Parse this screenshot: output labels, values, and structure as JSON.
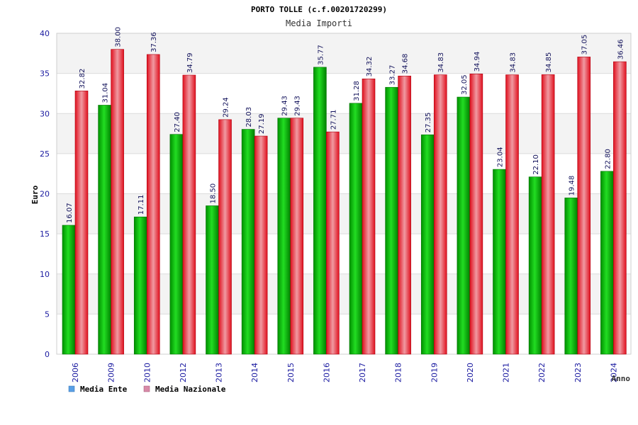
{
  "chart_data": {
    "type": "bar",
    "title": "PORTO TOLLE (c.f.00201720299)",
    "subtitle": "Media Importi",
    "xlabel": "Anno",
    "ylabel": "Euro",
    "ylim": [
      0,
      40
    ],
    "yticks": [
      "0",
      "5",
      "10",
      "15",
      "20",
      "25",
      "30",
      "35",
      "40"
    ],
    "grid": true,
    "legend_position": "bottom-left",
    "categories": [
      "2006",
      "2009",
      "2010",
      "2012",
      "2013",
      "2014",
      "2015",
      "2016",
      "2017",
      "2018",
      "2019",
      "2020",
      "2021",
      "2022",
      "2023",
      "2024"
    ],
    "series": [
      {
        "name": "Media Ente",
        "color": "#00b000",
        "legend_color": "#5aa0e6",
        "values": [
          16.07,
          31.04,
          17.11,
          27.4,
          18.5,
          28.03,
          29.43,
          35.77,
          31.28,
          33.27,
          27.35,
          32.05,
          23.04,
          22.1,
          19.48,
          22.8
        ],
        "labels": [
          "16.07",
          "31.04",
          "17.11",
          "27.40",
          "18.50",
          "28.03",
          "29.43",
          "35.77",
          "31.28",
          "33.27",
          "27.35",
          "32.05",
          "23.04",
          "22.10",
          "19.48",
          "22.80"
        ]
      },
      {
        "name": "Media Nazionale",
        "color": "#e8192c",
        "legend_color": "#d88aa8",
        "values": [
          32.82,
          38.0,
          37.36,
          34.79,
          29.24,
          27.19,
          29.43,
          27.71,
          34.32,
          34.68,
          34.83,
          34.94,
          34.83,
          34.85,
          37.05,
          36.46
        ],
        "labels": [
          "32.82",
          "38.00",
          "37.36",
          "34.79",
          "29.24",
          "27.19",
          "29.43",
          "27.71",
          "34.32",
          "34.68",
          "34.83",
          "34.94",
          "34.83",
          "34.85",
          "37.05",
          "36.46"
        ]
      }
    ]
  }
}
